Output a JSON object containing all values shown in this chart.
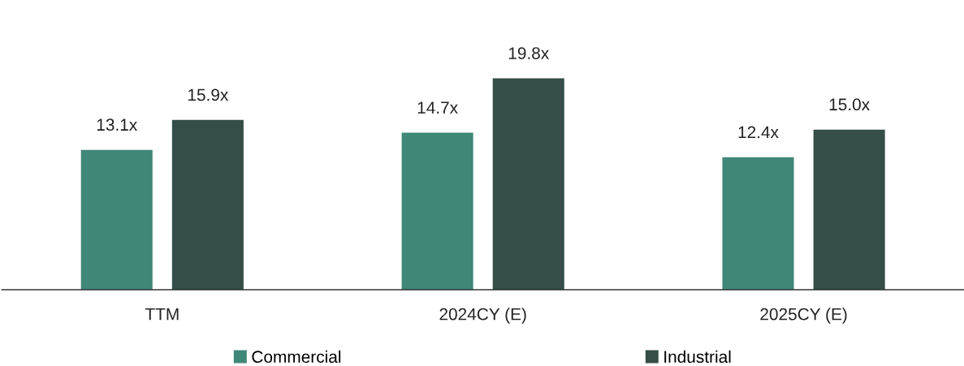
{
  "chart_data": {
    "type": "bar",
    "categories": [
      "TTM",
      "2024CY (E)",
      "2025CY (E)"
    ],
    "series": [
      {
        "name": "Commercial",
        "color": "#3f8777",
        "values": [
          13.1,
          14.7,
          12.4
        ],
        "value_labels": [
          "13.1x",
          "14.7x",
          "12.4x"
        ]
      },
      {
        "name": "Industrial",
        "color": "#354e47",
        "values": [
          15.9,
          19.8,
          15.0
        ],
        "value_labels": [
          "15.9x",
          "19.8x",
          "15.0x"
        ]
      }
    ],
    "tick_labels": "x",
    "grid": false,
    "legend": "bottom"
  }
}
